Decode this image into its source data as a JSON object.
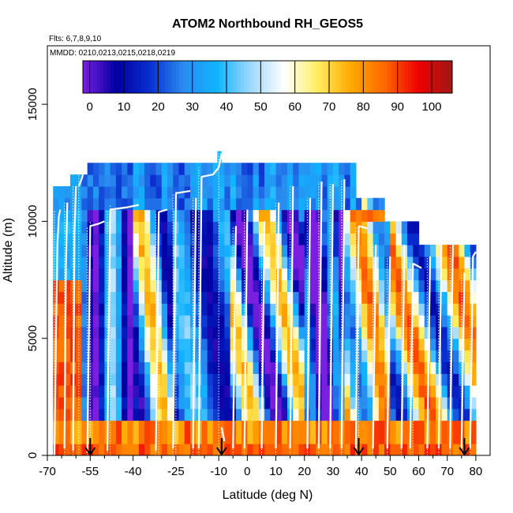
{
  "chart_data": {
    "type": "heatmap",
    "title": "ATOM2 Northbound RH_GEOS5",
    "subtitle_flights": "Flts: 6,7,8,9,10",
    "subtitle_dates": "MMDD: 0210,0213,0215,0218,0219",
    "xlabel": "Latitude (deg N)",
    "ylabel": "Altitude (m)",
    "xlim": [
      -70,
      85
    ],
    "ylim": [
      0,
      17500
    ],
    "x_ticks": [
      -70,
      -55,
      -40,
      -25,
      -10,
      0,
      10,
      20,
      30,
      40,
      50,
      60,
      70,
      80
    ],
    "x_minor_ticks": [
      -65,
      -60,
      -50,
      -45,
      -35,
      -30,
      -20,
      -15,
      -5,
      5,
      15,
      25,
      35,
      45,
      55,
      65,
      75
    ],
    "y_ticks": [
      0,
      5000,
      10000,
      15000
    ],
    "colorbar": {
      "ticks": [
        0,
        10,
        20,
        30,
        40,
        50,
        60,
        70,
        80,
        90,
        100
      ],
      "range": [
        -2,
        106
      ],
      "stops": [
        "#7a1fe0",
        "#0000a0",
        "#0a2fd0",
        "#2a8cf0",
        "#10b4ff",
        "#9ed8ff",
        "#ffffff",
        "#ffee60",
        "#ffa800",
        "#ff6600",
        "#ee0000",
        "#a01818"
      ]
    },
    "arrows_lat": [
      -55,
      -9,
      39,
      76
    ],
    "flight_tracks": [
      {
        "lat": [
          -67.5,
          -67,
          -66.5,
          -66,
          -65.5
        ],
        "alt": [
          0,
          5000,
          9000,
          10200,
          10500
        ]
      },
      {
        "lat": [
          -64,
          -63.5,
          -63
        ],
        "alt": [
          300,
          8000,
          10800
        ]
      },
      {
        "lat": [
          -61,
          -60.5,
          -60
        ],
        "alt": [
          200,
          9500,
          11500
        ]
      },
      {
        "lat": [
          -59,
          -58,
          -57.5
        ],
        "alt": [
          11500,
          11800,
          12000
        ]
      },
      {
        "lat": [
          -56,
          -55
        ],
        "alt": [
          100,
          9800
        ]
      },
      {
        "lat": [
          -55,
          -52,
          -50
        ],
        "alt": [
          9800,
          9900,
          10000
        ]
      },
      {
        "lat": [
          -49,
          -48
        ],
        "alt": [
          200,
          10500
        ]
      },
      {
        "lat": [
          -48,
          -42,
          -38
        ],
        "alt": [
          10500,
          10600,
          10700
        ]
      },
      {
        "lat": [
          -32,
          -31
        ],
        "alt": [
          200,
          10400
        ]
      },
      {
        "lat": [
          -31,
          -28
        ],
        "alt": [
          10400,
          10500
        ]
      },
      {
        "lat": [
          -26,
          -25
        ],
        "alt": [
          300,
          11200
        ]
      },
      {
        "lat": [
          -25,
          -20
        ],
        "alt": [
          11200,
          11300
        ]
      },
      {
        "lat": [
          -19,
          -18
        ],
        "alt": [
          300,
          11000
        ]
      },
      {
        "lat": [
          -17,
          -16,
          -12,
          -10
        ],
        "alt": [
          300,
          11900,
          12000,
          12300
        ]
      },
      {
        "lat": [
          -10,
          -9
        ],
        "alt": [
          12300,
          12900
        ]
      },
      {
        "lat": [
          -9,
          -8
        ],
        "alt": [
          1200,
          600
        ]
      },
      {
        "lat": [
          -5,
          -4
        ],
        "alt": [
          300,
          9800
        ]
      },
      {
        "lat": [
          -1,
          0
        ],
        "alt": [
          300,
          10500
        ]
      },
      {
        "lat": [
          5,
          6
        ],
        "alt": [
          300,
          10000
        ]
      },
      {
        "lat": [
          10,
          11
        ],
        "alt": [
          300,
          10800
        ]
      },
      {
        "lat": [
          15,
          16
        ],
        "alt": [
          300,
          11500
        ]
      },
      {
        "lat": [
          21,
          22
        ],
        "alt": [
          300,
          11000
        ]
      },
      {
        "lat": [
          25,
          26
        ],
        "alt": [
          300,
          11700
        ]
      },
      {
        "lat": [
          29,
          30
        ],
        "alt": [
          300,
          11600
        ]
      },
      {
        "lat": [
          33,
          34
        ],
        "alt": [
          300,
          11800
        ]
      },
      {
        "lat": [
          38,
          39
        ],
        "alt": [
          300,
          9800
        ]
      },
      {
        "lat": [
          39,
          42
        ],
        "alt": [
          9800,
          9700
        ]
      },
      {
        "lat": [
          44,
          45
        ],
        "alt": [
          300,
          9000
        ]
      },
      {
        "lat": [
          49,
          50
        ],
        "alt": [
          300,
          8500
        ]
      },
      {
        "lat": [
          54,
          55
        ],
        "alt": [
          300,
          9000
        ]
      },
      {
        "lat": [
          57,
          58
        ],
        "alt": [
          300,
          8200
        ]
      },
      {
        "lat": [
          58,
          61
        ],
        "alt": [
          8200,
          8000
        ]
      },
      {
        "lat": [
          63,
          64
        ],
        "alt": [
          300,
          8500
        ]
      },
      {
        "lat": [
          67,
          68
        ],
        "alt": [
          300,
          9500
        ]
      },
      {
        "lat": [
          71,
          72
        ],
        "alt": [
          300,
          9200
        ]
      },
      {
        "lat": [
          75,
          76
        ],
        "alt": [
          300,
          7800
        ]
      },
      {
        "lat": [
          78,
          79,
          80
        ],
        "alt": [
          300,
          8500,
          8700
        ]
      }
    ]
  }
}
